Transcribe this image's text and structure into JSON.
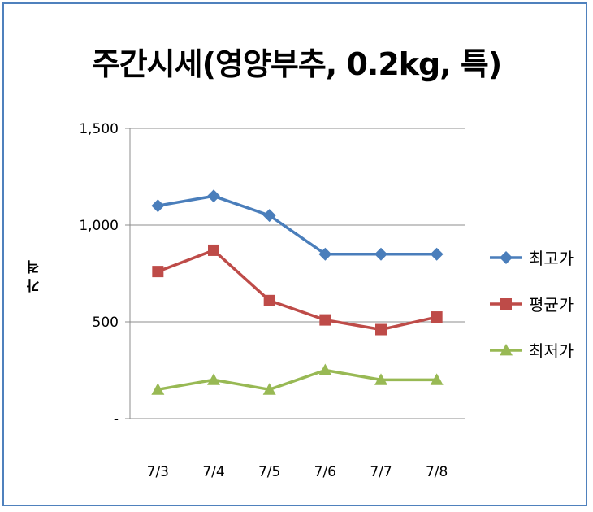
{
  "chart_data": {
    "type": "line",
    "title": "주간시세(영양부추, 0.2kg, 특)",
    "ylabel": "가 격",
    "xlabel": "",
    "categories": [
      "7/3",
      "7/4",
      "7/5",
      "7/6",
      "7/7",
      "7/8"
    ],
    "ylim": [
      0,
      1500
    ],
    "yticks": [
      0,
      500,
      1000,
      1500
    ],
    "ytick_labels": [
      "-",
      "500",
      "1,000",
      "1,500"
    ],
    "grid": true,
    "legend_position": "right",
    "series": [
      {
        "name": "최고가",
        "color": "#4a7ebb",
        "marker": "diamond",
        "values": [
          1100,
          1150,
          1050,
          850,
          850,
          850
        ]
      },
      {
        "name": "평균가",
        "color": "#be4b48",
        "marker": "square",
        "values": [
          760,
          870,
          610,
          510,
          460,
          525
        ]
      },
      {
        "name": "최저가",
        "color": "#98b954",
        "marker": "triangle",
        "values": [
          150,
          200,
          150,
          250,
          200,
          200
        ]
      }
    ]
  }
}
